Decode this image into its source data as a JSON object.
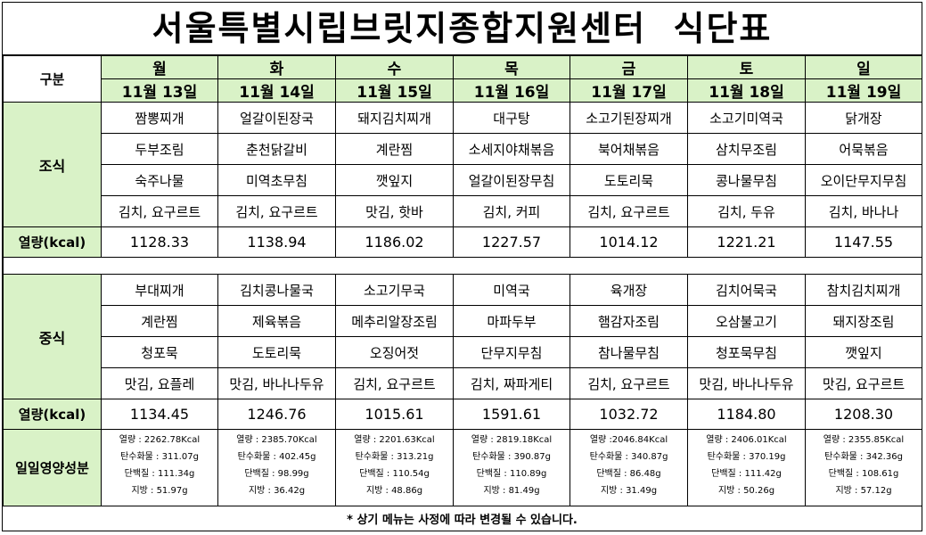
{
  "title": "서울특별시립브릿지종합지원센터  식단표",
  "labels": {
    "category": "구분",
    "breakfast": "조식",
    "lunch": "중식",
    "calories": "열량(kcal)",
    "nutrition": "일일영양성분"
  },
  "days": [
    {
      "day": "월",
      "date": "11월 13일"
    },
    {
      "day": "화",
      "date": "11월 14일"
    },
    {
      "day": "수",
      "date": "11월 15일"
    },
    {
      "day": "목",
      "date": "11월 16일"
    },
    {
      "day": "금",
      "date": "11월 17일"
    },
    {
      "day": "토",
      "date": "11월 18일"
    },
    {
      "day": "일",
      "date": "11월 19일"
    }
  ],
  "breakfast": {
    "rows": [
      [
        "짬뽕찌개",
        "얼갈이된장국",
        "돼지김치찌개",
        "대구탕",
        "소고기된장찌개",
        "소고기미역국",
        "닭개장"
      ],
      [
        "두부조림",
        "춘천닭갈비",
        "계란찜",
        "소세지야채볶음",
        "북어채볶음",
        "삼치무조림",
        "어묵볶음"
      ],
      [
        "숙주나물",
        "미역초무침",
        "깻잎지",
        "얼갈이된장무침",
        "도토리묵",
        "콩나물무침",
        "오이단무지무침"
      ],
      [
        "김치, 요구르트",
        "김치, 요구르트",
        "맛김, 핫바",
        "김치, 커피",
        "김치, 요구르트",
        "김치, 두유",
        "김치, 바나나"
      ]
    ],
    "kcal": [
      "1128.33",
      "1138.94",
      "1186.02",
      "1227.57",
      "1014.12",
      "1221.21",
      "1147.55"
    ]
  },
  "lunch": {
    "rows": [
      [
        "부대찌개",
        "김치콩나물국",
        "소고기무국",
        "미역국",
        "육개장",
        "김치어묵국",
        "참치김치찌개"
      ],
      [
        "계란찜",
        "제육볶음",
        "메추리알장조림",
        "마파두부",
        "햄감자조림",
        "오삼불고기",
        "돼지장조림"
      ],
      [
        "청포묵",
        "도토리묵",
        "오징어젓",
        "단무지무침",
        "참나물무침",
        "청포묵무침",
        "깻잎지"
      ],
      [
        "맛김, 요플레",
        "맛김, 바나나두유",
        "김치, 요구르트",
        "김치, 짜파게티",
        "김치, 요구르트",
        "맛김, 바나나두유",
        "맛김, 요구르트"
      ]
    ],
    "kcal": [
      "1134.45",
      "1246.76",
      "1015.61",
      "1591.61",
      "1032.72",
      "1184.80",
      "1208.30"
    ]
  },
  "nutrition": [
    [
      "열량 : 2262.78Kcal",
      "탄수화물 : 311.07g",
      "단백질 : 111.34g",
      "지방 : 51.97g"
    ],
    [
      "열량 : 2385.70Kcal",
      "탄수화물 : 402.45g",
      "단백질 : 98.99g",
      "지방 : 36.42g"
    ],
    [
      "열량 : 2201.63Kcal",
      "탄수화물 : 313.21g",
      "단백질 : 110.54g",
      "지방 : 48.86g"
    ],
    [
      "열량 : 2819.18Kcal",
      "탄수화물 : 390.87g",
      "단백질 : 110.89g",
      "지방 : 81.49g"
    ],
    [
      "열량 :2046.84Kcal",
      "탄수화물 : 340.87g",
      "단백질 : 86.48g",
      "지방 : 31.49g"
    ],
    [
      "열량 : 2406.01Kcal",
      "탄수화물 : 370.19g",
      "단백질 : 111.42g",
      "지방 : 50.26g"
    ],
    [
      "열량 : 2355.85Kcal",
      "탄수화물 : 342.36g",
      "단백질 : 108.61g",
      "지방 : 57.12g"
    ]
  ],
  "note": "*  상기  메뉴는  사정에  따라  변경될  수  있습니다."
}
